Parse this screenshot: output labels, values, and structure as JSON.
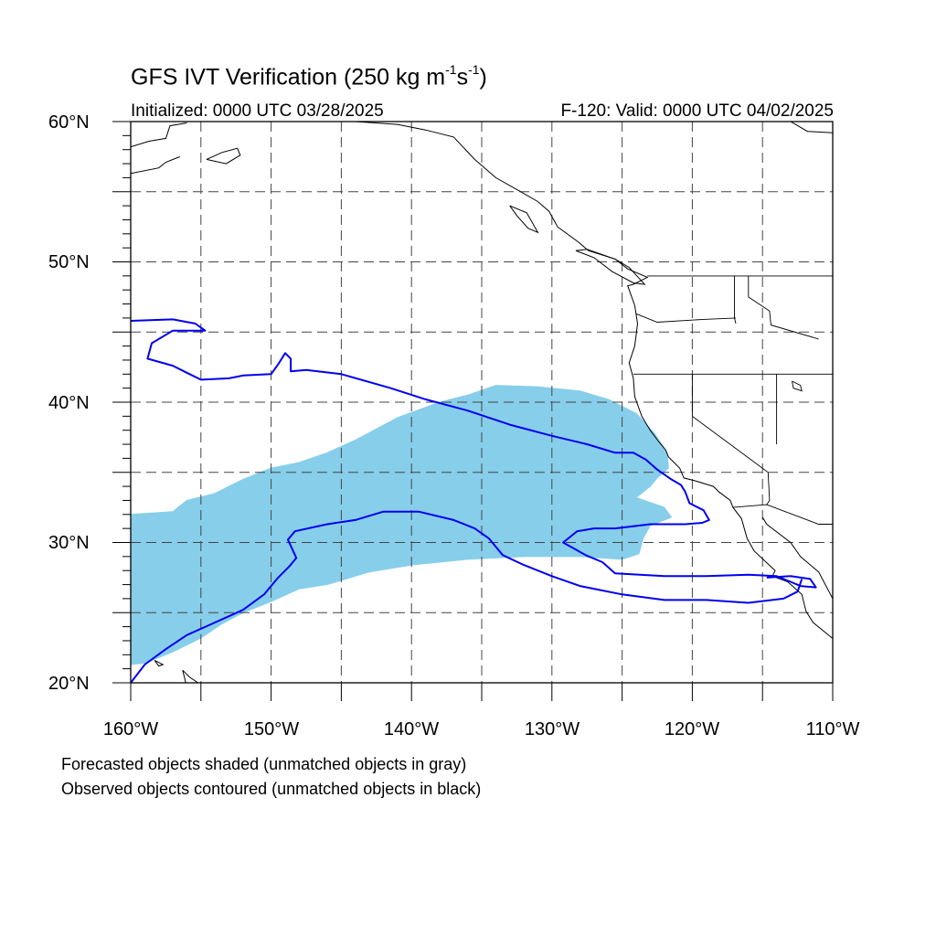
{
  "header": {
    "title_main": "GFS IVT Verification (250 kg m",
    "title_exp1": "-1",
    "title_mid": "s",
    "title_exp2": "-1",
    "title_end": ")",
    "initialized": "Initialized: 0000 UTC 03/28/2025",
    "valid": "F-120: Valid: 0000 UTC 04/02/2025"
  },
  "axes": {
    "lat_labels": [
      "60°N",
      "50°N",
      "40°N",
      "30°N",
      "20°N"
    ],
    "lon_labels": [
      "160°W",
      "150°W",
      "140°W",
      "130°W",
      "120°W",
      "110°W"
    ],
    "lon_range": [
      -160,
      -110
    ],
    "lat_range": [
      20,
      60
    ],
    "grid": "dashed every 5°"
  },
  "legend": {
    "line1": "Forecasted objects shaded (unmatched objects in gray)",
    "line2": "Observed objects contoured (unmatched objects in black)"
  },
  "colors": {
    "forecast_fill": "#87ceea",
    "observed_contour": "#0000ee",
    "coastline": "#000000",
    "gridline": "#444444"
  },
  "chart_data": {
    "type": "map",
    "projection": "cylindrical equidistant",
    "forecast_object": {
      "name": "Forecasted objects",
      "lonlat": [
        [
          -160,
          32
        ],
        [
          -157,
          32.2
        ],
        [
          -156,
          33
        ],
        [
          -154,
          33.5
        ],
        [
          -152,
          34.5
        ],
        [
          -150,
          35.3
        ],
        [
          -148,
          35.7
        ],
        [
          -146,
          36.4
        ],
        [
          -144,
          37.3
        ],
        [
          -141,
          38.9
        ],
        [
          -138,
          40
        ],
        [
          -136,
          40.5
        ],
        [
          -134,
          41.2
        ],
        [
          -131,
          41.1
        ],
        [
          -128,
          40.8
        ],
        [
          -126,
          40.2
        ],
        [
          -124,
          39.2
        ],
        [
          -122.7,
          37.8
        ],
        [
          -121.8,
          36.4
        ],
        [
          -121.7,
          35.3
        ],
        [
          -122.5,
          34.6
        ],
        [
          -123,
          34
        ],
        [
          -124,
          33.2
        ],
        [
          -122,
          32.5
        ],
        [
          -121.5,
          31.8
        ],
        [
          -123,
          31.2
        ],
        [
          -123.5,
          30.3
        ],
        [
          -123.8,
          29.2
        ],
        [
          -125,
          28.8
        ],
        [
          -128,
          29
        ],
        [
          -132,
          29
        ],
        [
          -136,
          28.8
        ],
        [
          -140,
          28.4
        ],
        [
          -143,
          27.9
        ],
        [
          -146,
          27
        ],
        [
          -148,
          26.7
        ],
        [
          -150,
          25.8
        ],
        [
          -152,
          25
        ],
        [
          -153.5,
          24.2
        ],
        [
          -155,
          23.2
        ],
        [
          -157,
          22.2
        ],
        [
          -159,
          21.4
        ],
        [
          -160,
          21.3
        ]
      ]
    },
    "observed_objects": [
      {
        "name": "Observed objects (north)",
        "lonlat": [
          [
            -160,
            45.8
          ],
          [
            -157,
            45.9
          ],
          [
            -155.4,
            45.6
          ],
          [
            -154.7,
            45.1
          ],
          [
            -157,
            45.1
          ],
          [
            -158.5,
            44.2
          ],
          [
            -158.8,
            43.1
          ],
          [
            -157,
            42.6
          ],
          [
            -156,
            42.1
          ],
          [
            -155,
            41.6
          ],
          [
            -153,
            41.7
          ],
          [
            -152,
            41.9
          ],
          [
            -150,
            42
          ],
          [
            -149.5,
            42.7
          ],
          [
            -149,
            43.5
          ],
          [
            -148.6,
            43.1
          ],
          [
            -148.6,
            42.2
          ],
          [
            -147.5,
            42.3
          ],
          [
            -145,
            42
          ],
          [
            -141.5,
            41
          ],
          [
            -139,
            40.2
          ],
          [
            -136,
            39.4
          ],
          [
            -133,
            38.4
          ],
          [
            -130,
            37.6
          ],
          [
            -127.5,
            37
          ],
          [
            -125.5,
            36.4
          ],
          [
            -124.2,
            36.4
          ],
          [
            -123.3,
            35.9
          ],
          [
            -122.5,
            35.2
          ],
          [
            -121.5,
            34.5
          ],
          [
            -120.8,
            34.1
          ],
          [
            -120.5,
            33.6
          ],
          [
            -120.2,
            32.8
          ],
          [
            -119.2,
            32.3
          ],
          [
            -118.8,
            31.6
          ],
          [
            -119.3,
            31.4
          ],
          [
            -120.5,
            31.3
          ],
          [
            -123,
            31.3
          ],
          [
            -125.5,
            31
          ],
          [
            -127,
            31
          ],
          [
            -128.2,
            30.8
          ],
          [
            -129.2,
            30
          ],
          [
            -127.6,
            29.1
          ],
          [
            -126.4,
            28.6
          ],
          [
            -125.5,
            27.8
          ],
          [
            -122,
            27.6
          ],
          [
            -119,
            27.6
          ],
          [
            -116,
            27.7
          ],
          [
            -114,
            27.6
          ],
          [
            -113,
            27.2
          ],
          [
            -112.3,
            26.9
          ],
          [
            -111.2,
            26.8
          ],
          [
            -111.6,
            27.4
          ],
          [
            -113,
            27.6
          ],
          [
            -114.7,
            27.5
          ]
        ]
      },
      {
        "name": "Observed objects (south)",
        "lonlat": [
          [
            -160,
            20
          ],
          [
            -159,
            21.3
          ],
          [
            -157.5,
            22.4
          ],
          [
            -156,
            23.4
          ],
          [
            -154,
            24.3
          ],
          [
            -152,
            25.2
          ],
          [
            -150.5,
            26.3
          ],
          [
            -149.5,
            27.5
          ],
          [
            -148.7,
            28.3
          ],
          [
            -148.2,
            28.9
          ],
          [
            -148.8,
            30.2
          ],
          [
            -148.3,
            30.8
          ],
          [
            -146,
            31.3
          ],
          [
            -144,
            31.6
          ],
          [
            -142,
            32.2
          ],
          [
            -139.5,
            32.2
          ],
          [
            -137,
            31.6
          ],
          [
            -135.5,
            31
          ],
          [
            -134.5,
            30.3
          ],
          [
            -133.5,
            29.1
          ],
          [
            -132,
            28.4
          ],
          [
            -130,
            27.6
          ],
          [
            -128,
            26.9
          ],
          [
            -125,
            26.3
          ],
          [
            -122,
            25.9
          ],
          [
            -119,
            25.9
          ],
          [
            -116,
            25.7
          ],
          [
            -113.5,
            26
          ],
          [
            -112.5,
            26.5
          ],
          [
            -112.2,
            27.4
          ]
        ]
      }
    ]
  },
  "coastlines": [
    {
      "name": "Alaska Gulf",
      "lonlat": [
        [
          -160,
          58.2
        ],
        [
          -158.7,
          58.6
        ],
        [
          -157.5,
          58.8
        ],
        [
          -157.2,
          59.7
        ],
        [
          -156,
          59.9
        ]
      ]
    },
    {
      "name": "Alaska Peninsula",
      "lonlat": [
        [
          -160,
          56.3
        ],
        [
          -158,
          56.7
        ],
        [
          -157.5,
          57.1
        ],
        [
          -156.5,
          57.5
        ]
      ]
    },
    {
      "name": "Kodiak",
      "lonlat": [
        [
          -154.6,
          57.3
        ],
        [
          -153.5,
          57.8
        ],
        [
          -152.4,
          58.1
        ],
        [
          -152.2,
          57.6
        ],
        [
          -153.2,
          57.0
        ],
        [
          -154.6,
          57.3
        ]
      ]
    },
    {
      "name": "Gulf of Alaska coast",
      "lonlat": [
        [
          -148,
          60
        ],
        [
          -146,
          60.6
        ],
        [
          -144,
          60
        ],
        [
          -141,
          59.8
        ],
        [
          -139,
          59.4
        ],
        [
          -137,
          58.9
        ],
        [
          -135.5,
          57.3
        ],
        [
          -134,
          56
        ],
        [
          -132.4,
          55.1
        ],
        [
          -131,
          54.3
        ],
        [
          -130.2,
          53.6
        ],
        [
          -129.6,
          52.5
        ],
        [
          -128.1,
          51.4
        ],
        [
          -127.4,
          50.8
        ],
        [
          -125.5,
          50.2
        ],
        [
          -124.6,
          49.5
        ],
        [
          -123.2,
          48.9
        ],
        [
          -124.2,
          48.4
        ],
        [
          -124.6,
          48.3
        ],
        [
          -124.1,
          46.9
        ],
        [
          -123.9,
          45.6
        ],
        [
          -124.1,
          44
        ],
        [
          -124.5,
          42.8
        ],
        [
          -124.2,
          41.7
        ],
        [
          -124.1,
          40.4
        ],
        [
          -123.6,
          39
        ],
        [
          -123,
          38
        ],
        [
          -122.4,
          37.2
        ],
        [
          -121.9,
          36.6
        ],
        [
          -121.7,
          36.1
        ],
        [
          -120.9,
          35.3
        ],
        [
          -120.6,
          34.6
        ],
        [
          -119.8,
          34.4
        ],
        [
          -118.5,
          34
        ],
        [
          -118.1,
          33.6
        ],
        [
          -117.3,
          33
        ],
        [
          -117.1,
          32.5
        ],
        [
          -116.5,
          31.7
        ],
        [
          -116.1,
          30.3
        ],
        [
          -115.6,
          29.4
        ],
        [
          -114.1,
          28
        ],
        [
          -114.3,
          27.6
        ],
        [
          -113.2,
          27.2
        ],
        [
          -112.2,
          26.3
        ],
        [
          -111.9,
          25.1
        ],
        [
          -111.4,
          24.3
        ],
        [
          -110.3,
          23.4
        ],
        [
          -109.8,
          23.0
        ]
      ]
    },
    {
      "name": "Gulf of California east",
      "lonlat": [
        [
          -115,
          31.8
        ],
        [
          -114.7,
          31.3
        ],
        [
          -113,
          30
        ],
        [
          -112.3,
          29
        ],
        [
          -111,
          27.9
        ],
        [
          -110,
          26
        ],
        [
          -110,
          24.5
        ]
      ]
    },
    {
      "name": "Haida Gwaii",
      "lonlat": [
        [
          -133,
          54
        ],
        [
          -132.5,
          53.3
        ],
        [
          -131.7,
          52.4
        ],
        [
          -131,
          52.1
        ],
        [
          -131.8,
          53.5
        ],
        [
          -133,
          54
        ]
      ]
    },
    {
      "name": "Vancouver Island",
      "lonlat": [
        [
          -128.3,
          50.8
        ],
        [
          -127,
          50.3
        ],
        [
          -125.7,
          49.3
        ],
        [
          -124.2,
          48.5
        ],
        [
          -123.4,
          48.4
        ],
        [
          -124.5,
          49.6
        ],
        [
          -125.5,
          50.2
        ],
        [
          -127.5,
          50.9
        ],
        [
          -128.3,
          50.8
        ]
      ]
    },
    {
      "name": "Hawaii",
      "lonlat": [
        [
          -158.3,
          21.6
        ],
        [
          -157.7,
          21.3
        ],
        [
          -158.0,
          21.2
        ],
        [
          -158.3,
          21.6
        ]
      ]
    },
    {
      "name": "Hawaii 2",
      "lonlat": [
        [
          -156.3,
          20.9
        ],
        [
          -155.8,
          20.4
        ],
        [
          -155.2,
          20.0
        ],
        [
          -154.8,
          19.6
        ],
        [
          -155.6,
          19.1
        ],
        [
          -156.0,
          19.7
        ],
        [
          -156.3,
          20.9
        ]
      ]
    },
    {
      "name": "Hudson Bay edge",
      "lonlat": [
        [
          -113,
          60
        ],
        [
          -111.8,
          59.3
        ],
        [
          -110,
          59.2
        ]
      ]
    }
  ],
  "borders": [
    {
      "name": "US-Canada",
      "lonlat": [
        [
          -123.2,
          49
        ],
        [
          -110,
          49
        ]
      ]
    },
    {
      "name": "OR-WA",
      "lonlat": [
        [
          -124,
          46.3
        ],
        [
          -122.5,
          45.7
        ],
        [
          -119.2,
          45.9
        ],
        [
          -116.9,
          46
        ]
      ]
    },
    {
      "name": "OR-CA/NV",
      "lonlat": [
        [
          -124.2,
          42
        ],
        [
          -110,
          42
        ]
      ]
    },
    {
      "name": "CA-NV",
      "lonlat": [
        [
          -120,
          42
        ],
        [
          -120,
          39
        ],
        [
          -114.6,
          35
        ]
      ]
    },
    {
      "name": "ID-WA",
      "lonlat": [
        [
          -117,
          49
        ],
        [
          -117,
          46
        ],
        [
          -116.9,
          45.6
        ]
      ]
    },
    {
      "name": "ID-MT",
      "lonlat": [
        [
          -116,
          49
        ],
        [
          -116,
          47.5
        ],
        [
          -114.5,
          46.5
        ],
        [
          -114.4,
          45.5
        ],
        [
          -111,
          44.5
        ]
      ]
    },
    {
      "name": "NV-UT",
      "lonlat": [
        [
          -114,
          42
        ],
        [
          -114,
          37
        ]
      ]
    },
    {
      "name": "AZ-CA",
      "lonlat": [
        [
          -114.6,
          35
        ],
        [
          -114.5,
          33
        ],
        [
          -114.7,
          32.7
        ]
      ]
    },
    {
      "name": "US-Mexico",
      "lonlat": [
        [
          -117.1,
          32.5
        ],
        [
          -114.7,
          32.7
        ],
        [
          -111,
          31.3
        ],
        [
          -110,
          31.3
        ]
      ]
    },
    {
      "name": "Great Salt Lake",
      "lonlat": [
        [
          -112.9,
          41.5
        ],
        [
          -112.3,
          41.2
        ],
        [
          -112.2,
          40.8
        ],
        [
          -112.8,
          41.0
        ],
        [
          -112.9,
          41.5
        ]
      ]
    }
  ]
}
